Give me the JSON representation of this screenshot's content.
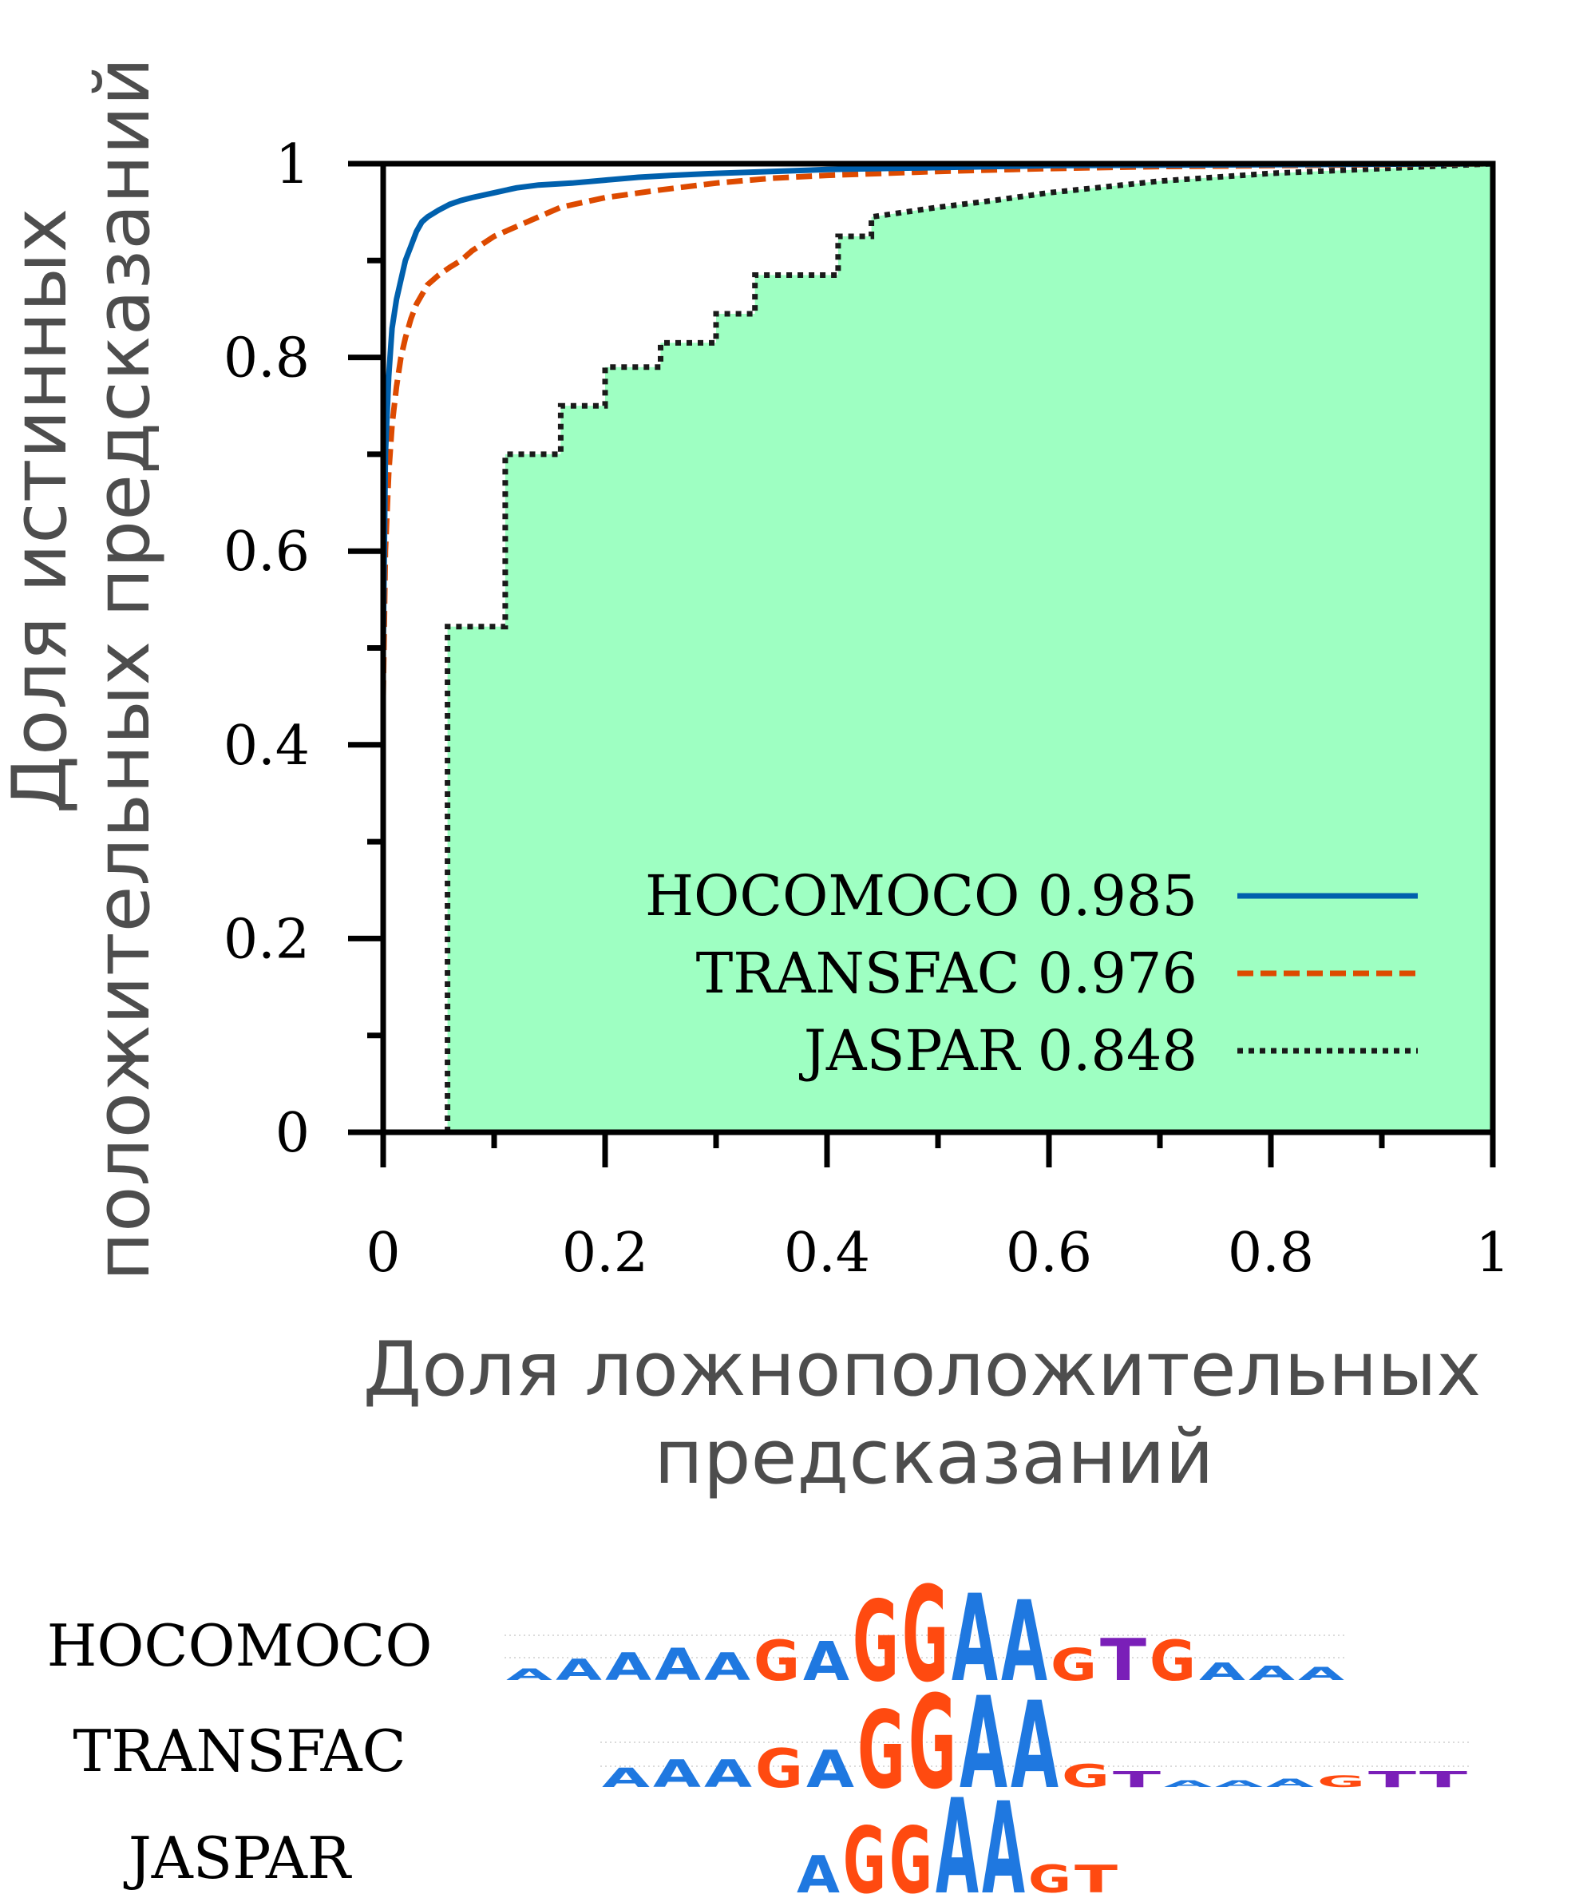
{
  "chart_data": {
    "type": "line",
    "xlabel": "Доля ложноположительных предсказаний",
    "xlabel_lines": [
      "Доля ложноположительных",
      "предсказаний"
    ],
    "ylabel": "Доля истинных положительных предсказаний",
    "ylabel_lines": [
      "Доля истинных",
      "положительных предсказаний"
    ],
    "xlim": [
      0,
      1
    ],
    "ylim": [
      0,
      1
    ],
    "x_ticks": [
      "0",
      "0.2",
      "0.4",
      "0.6",
      "0.8",
      "1"
    ],
    "y_ticks": [
      "0",
      "0.2",
      "0.4",
      "0.6",
      "0.8",
      "1"
    ],
    "grid": false,
    "legend_position": "bottom-right",
    "fill_under": "JASPAR",
    "fill_color": "#9effc2",
    "series": [
      {
        "name": "HOCOMOCO",
        "auc": "0.985",
        "legend_text": "HOCOMOCO 0.985",
        "color": "#0060ad",
        "style": "solid",
        "x": [
          0,
          0.002,
          0.005,
          0.008,
          0.012,
          0.016,
          0.02,
          0.025,
          0.03,
          0.035,
          0.04,
          0.05,
          0.06,
          0.07,
          0.08,
          0.1,
          0.12,
          0.14,
          0.17,
          0.2,
          0.23,
          0.26,
          0.3,
          0.35,
          0.4,
          0.5,
          0.6,
          0.8,
          1
        ],
        "y": [
          0.5,
          0.7,
          0.78,
          0.83,
          0.86,
          0.88,
          0.9,
          0.915,
          0.93,
          0.94,
          0.945,
          0.952,
          0.958,
          0.962,
          0.965,
          0.97,
          0.975,
          0.978,
          0.98,
          0.983,
          0.986,
          0.988,
          0.99,
          0.992,
          0.994,
          0.996,
          0.998,
          0.999,
          1
        ]
      },
      {
        "name": "TRANSFAC",
        "auc": "0.976",
        "legend_text": "TRANSFAC 0.976",
        "color": "#dd4a00",
        "style": "dashed",
        "x": [
          0,
          0.002,
          0.005,
          0.008,
          0.012,
          0.016,
          0.02,
          0.025,
          0.03,
          0.04,
          0.05,
          0.06,
          0.07,
          0.08,
          0.1,
          0.12,
          0.14,
          0.16,
          0.2,
          0.25,
          0.3,
          0.35,
          0.4,
          0.5,
          0.6,
          0.7,
          0.8,
          1
        ],
        "y": [
          0.45,
          0.6,
          0.68,
          0.73,
          0.77,
          0.8,
          0.82,
          0.84,
          0.855,
          0.875,
          0.885,
          0.893,
          0.9,
          0.91,
          0.925,
          0.935,
          0.945,
          0.955,
          0.965,
          0.973,
          0.98,
          0.985,
          0.988,
          0.992,
          0.995,
          0.997,
          0.998,
          1
        ]
      },
      {
        "name": "JASPAR",
        "auc": "0.848",
        "legend_text": "JASPAR 0.848",
        "color": "#1a1a1a",
        "style": "dotted",
        "step": true,
        "x": [
          0.058,
          0.058,
          0.11,
          0.11,
          0.16,
          0.16,
          0.2,
          0.2,
          0.25,
          0.25,
          0.3,
          0.3,
          0.335,
          0.335,
          0.41,
          0.41,
          0.44,
          0.44,
          0.5,
          0.55,
          0.6,
          0.7,
          0.8,
          0.9,
          1
        ],
        "y": [
          0,
          0.522,
          0.522,
          0.7,
          0.7,
          0.75,
          0.75,
          0.79,
          0.79,
          0.815,
          0.815,
          0.845,
          0.845,
          0.885,
          0.885,
          0.925,
          0.925,
          0.945,
          0.955,
          0.962,
          0.97,
          0.982,
          0.99,
          0.995,
          1
        ]
      }
    ]
  },
  "logos": [
    {
      "name": "HOCOMOCO",
      "columns": [
        {
          "letter": "A",
          "color": "#1f78e0",
          "h": 14
        },
        {
          "letter": "A",
          "color": "#1f78e0",
          "h": 26
        },
        {
          "letter": "A",
          "color": "#1f78e0",
          "h": 34
        },
        {
          "letter": "A",
          "color": "#1f78e0",
          "h": 40
        },
        {
          "letter": "A",
          "color": "#1f78e0",
          "h": 34
        },
        {
          "letter": "G",
          "color": "#ff4a10",
          "h": 50
        },
        {
          "letter": "A",
          "color": "#1f78e0",
          "h": 48
        },
        {
          "letter": "G",
          "color": "#ff4a10",
          "h": 100
        },
        {
          "letter": "G",
          "color": "#ff4a10",
          "h": 118
        },
        {
          "letter": "A",
          "color": "#1f78e0",
          "h": 108
        },
        {
          "letter": "A",
          "color": "#1f78e0",
          "h": 100
        },
        {
          "letter": "G",
          "color": "#ff4a10",
          "h": 40
        },
        {
          "letter": "T",
          "color": "#7a1fb8",
          "h": 52
        },
        {
          "letter": "G",
          "color": "#ff4a10",
          "h": 50
        },
        {
          "letter": "A",
          "color": "#1f78e0",
          "h": 22
        },
        {
          "letter": "A",
          "color": "#1f78e0",
          "h": 18
        },
        {
          "letter": "A",
          "color": "#1f78e0",
          "h": 16
        }
      ]
    },
    {
      "name": "TRANSFAC",
      "columns": [
        {
          "letter": "A",
          "color": "#1f78e0",
          "h": 24
        },
        {
          "letter": "A",
          "color": "#1f78e0",
          "h": 34
        },
        {
          "letter": "A",
          "color": "#1f78e0",
          "h": 34
        },
        {
          "letter": "G",
          "color": "#ff4a10",
          "h": 48
        },
        {
          "letter": "A",
          "color": "#1f78e0",
          "h": 46
        },
        {
          "letter": "G",
          "color": "#ff4a10",
          "h": 96
        },
        {
          "letter": "G",
          "color": "#ff4a10",
          "h": 116
        },
        {
          "letter": "A",
          "color": "#1f78e0",
          "h": 114
        },
        {
          "letter": "A",
          "color": "#1f78e0",
          "h": 108
        },
        {
          "letter": "G",
          "color": "#ff4a10",
          "h": 28
        },
        {
          "letter": "T",
          "color": "#7a1fb8",
          "h": 20
        },
        {
          "letter": "A",
          "color": "#1f78e0",
          "h": 8
        },
        {
          "letter": "A",
          "color": "#1f78e0",
          "h": 8
        },
        {
          "letter": "A",
          "color": "#1f78e0",
          "h": 10
        },
        {
          "letter": "G",
          "color": "#ff4a10",
          "h": 14
        },
        {
          "letter": "T",
          "color": "#7a1fb8",
          "h": 20
        },
        {
          "letter": "T",
          "color": "#7a1fb8",
          "h": 20
        }
      ]
    },
    {
      "name": "JASPAR",
      "columns": [
        {
          "letter": "A",
          "color": "#1f78e0",
          "h": 46
        },
        {
          "letter": "G",
          "color": "#ff4a10",
          "h": 82
        },
        {
          "letter": "G",
          "color": "#ff4a10",
          "h": 82
        },
        {
          "letter": "A",
          "color": "#1f78e0",
          "h": 118
        },
        {
          "letter": "A",
          "color": "#1f78e0",
          "h": 114
        },
        {
          "letter": "G",
          "color": "#ff4a10",
          "h": 34
        },
        {
          "letter": "T",
          "color": "#ff4a10",
          "h": 34
        }
      ]
    }
  ]
}
